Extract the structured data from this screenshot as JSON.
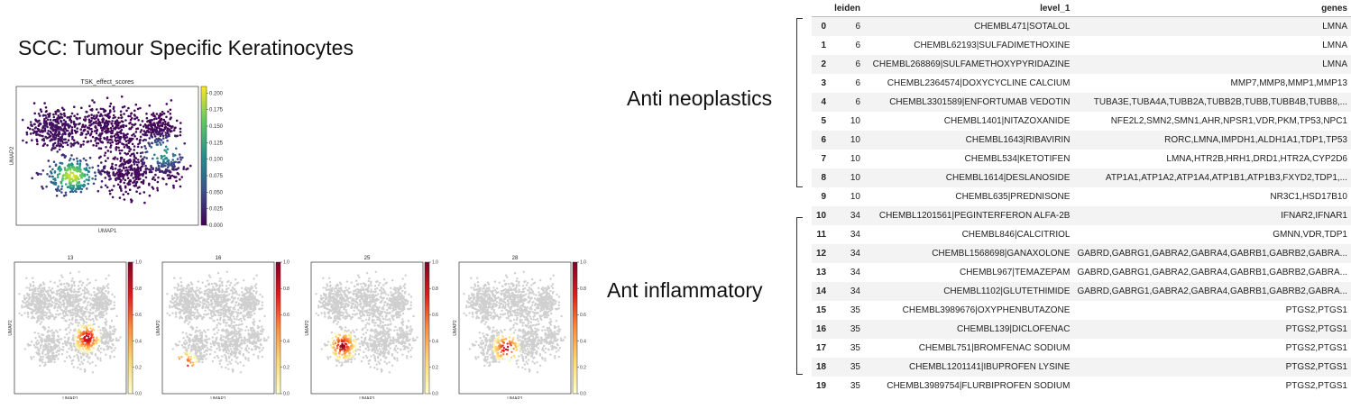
{
  "title": "SCC: Tumour Specific Keratinocytes",
  "labels": {
    "anti_neoplastics": "Anti neoplastics",
    "anti_inflammatory": "Ant inflammatory"
  },
  "chart_data": [
    {
      "type": "scatter",
      "title": "TSK_effect_scores",
      "xlabel": "UMAP1",
      "ylabel": "UMAP2",
      "colorbar": {
        "range": [
          0,
          0.21
        ],
        "ticks": [
          "0.000",
          "0.025",
          "0.050",
          "0.075",
          "0.100",
          "0.125",
          "0.150",
          "0.175",
          "0.200"
        ],
        "colormap": "viridis"
      }
    },
    {
      "type": "scatter",
      "title": "13",
      "xlabel": "UMAP1",
      "ylabel": "UMAP2",
      "colorbar": {
        "range": [
          0,
          1
        ],
        "ticks": [
          "0.0",
          "0.2",
          "0.4",
          "0.6",
          "0.8",
          "1.0"
        ],
        "colormap": "YlOrRd"
      }
    },
    {
      "type": "scatter",
      "title": "16",
      "xlabel": "UMAP1",
      "ylabel": "UMAP2",
      "colorbar": {
        "range": [
          0,
          1
        ],
        "ticks": [
          "0.0",
          "0.2",
          "0.4",
          "0.6",
          "0.8",
          "1.0"
        ],
        "colormap": "YlOrRd"
      }
    },
    {
      "type": "scatter",
      "title": "25",
      "xlabel": "UMAP1",
      "ylabel": "UMAP2",
      "colorbar": {
        "range": [
          0,
          1
        ],
        "ticks": [
          "0.0",
          "0.2",
          "0.4",
          "0.6",
          "0.8",
          "1.0"
        ],
        "colormap": "YlOrRd"
      }
    },
    {
      "type": "scatter",
      "title": "28",
      "xlabel": "UMAP1",
      "ylabel": "UMAP2",
      "colorbar": {
        "range": [
          0,
          1
        ],
        "ticks": [
          "0.0",
          "0.2",
          "0.4",
          "0.6",
          "0.8",
          "1.0"
        ],
        "colormap": "YlOrRd"
      }
    },
    {
      "type": "table",
      "columns": [
        "",
        "leiden",
        "level_1",
        "genes"
      ],
      "rows": [
        [
          "0",
          "6",
          "CHEMBL471|SOTALOL",
          "LMNA"
        ],
        [
          "1",
          "6",
          "CHEMBL62193|SULFADIMETHOXINE",
          "LMNA"
        ],
        [
          "2",
          "6",
          "CHEMBL268869|SULFAMETHOXYPYRIDAZINE",
          "LMNA"
        ],
        [
          "3",
          "6",
          "CHEMBL2364574|DOXYCYCLINE CALCIUM",
          "MMP7,MMP8,MMP1,MMP13"
        ],
        [
          "4",
          "6",
          "CHEMBL3301589|ENFORTUMAB VEDOTIN",
          "TUBA3E,TUBA4A,TUBB2A,TUBB2B,TUBB,TUBB4B,TUBB8,..."
        ],
        [
          "5",
          "10",
          "CHEMBL1401|NITAZOXANIDE",
          "NFE2L2,SMN2,SMN1,AHR,NPSR1,VDR,PKM,TP53,NPC1"
        ],
        [
          "6",
          "10",
          "CHEMBL1643|RIBAVIRIN",
          "RORC,LMNA,IMPDH1,ALDH1A1,TDP1,TP53"
        ],
        [
          "7",
          "10",
          "CHEMBL534|KETOTIFEN",
          "LMNA,HTR2B,HRH1,DRD1,HTR2A,CYP2D6"
        ],
        [
          "8",
          "10",
          "CHEMBL1614|DESLANOSIDE",
          "ATP1A1,ATP1A2,ATP1A4,ATP1B1,ATP1B3,FXYD2,TDP1,..."
        ],
        [
          "9",
          "10",
          "CHEMBL635|PREDNISONE",
          "NR3C1,HSD17B10"
        ],
        [
          "10",
          "34",
          "CHEMBL1201561|PEGINTERFERON ALFA-2B",
          "IFNAR2,IFNAR1"
        ],
        [
          "11",
          "34",
          "CHEMBL846|CALCITRIOL",
          "GMNN,VDR,TDP1"
        ],
        [
          "12",
          "34",
          "CHEMBL1568698|GANAXOLONE",
          "GABRD,GABRG1,GABRA2,GABRA4,GABRB1,GABRB2,GABRA..."
        ],
        [
          "13",
          "34",
          "CHEMBL967|TEMAZEPAM",
          "GABRD,GABRG1,GABRA2,GABRA4,GABRB1,GABRB2,GABRA..."
        ],
        [
          "14",
          "34",
          "CHEMBL1102|GLUTETHIMIDE",
          "GABRD,GABRG1,GABRA2,GABRA4,GABRB1,GABRB2,GABRA..."
        ],
        [
          "15",
          "35",
          "CHEMBL3989676|OXYPHENBUTAZONE",
          "PTGS2,PTGS1"
        ],
        [
          "16",
          "35",
          "CHEMBL139|DICLOFENAC",
          "PTGS2,PTGS1"
        ],
        [
          "17",
          "35",
          "CHEMBL751|BROMFENAC SODIUM",
          "PTGS2,PTGS1"
        ],
        [
          "18",
          "35",
          "CHEMBL1201141|IBUPROFEN LYSINE",
          "PTGS2,PTGS1"
        ],
        [
          "19",
          "35",
          "CHEMBL3989754|FLURBIPROFEN SODIUM",
          "PTGS2,PTGS1"
        ]
      ]
    }
  ]
}
